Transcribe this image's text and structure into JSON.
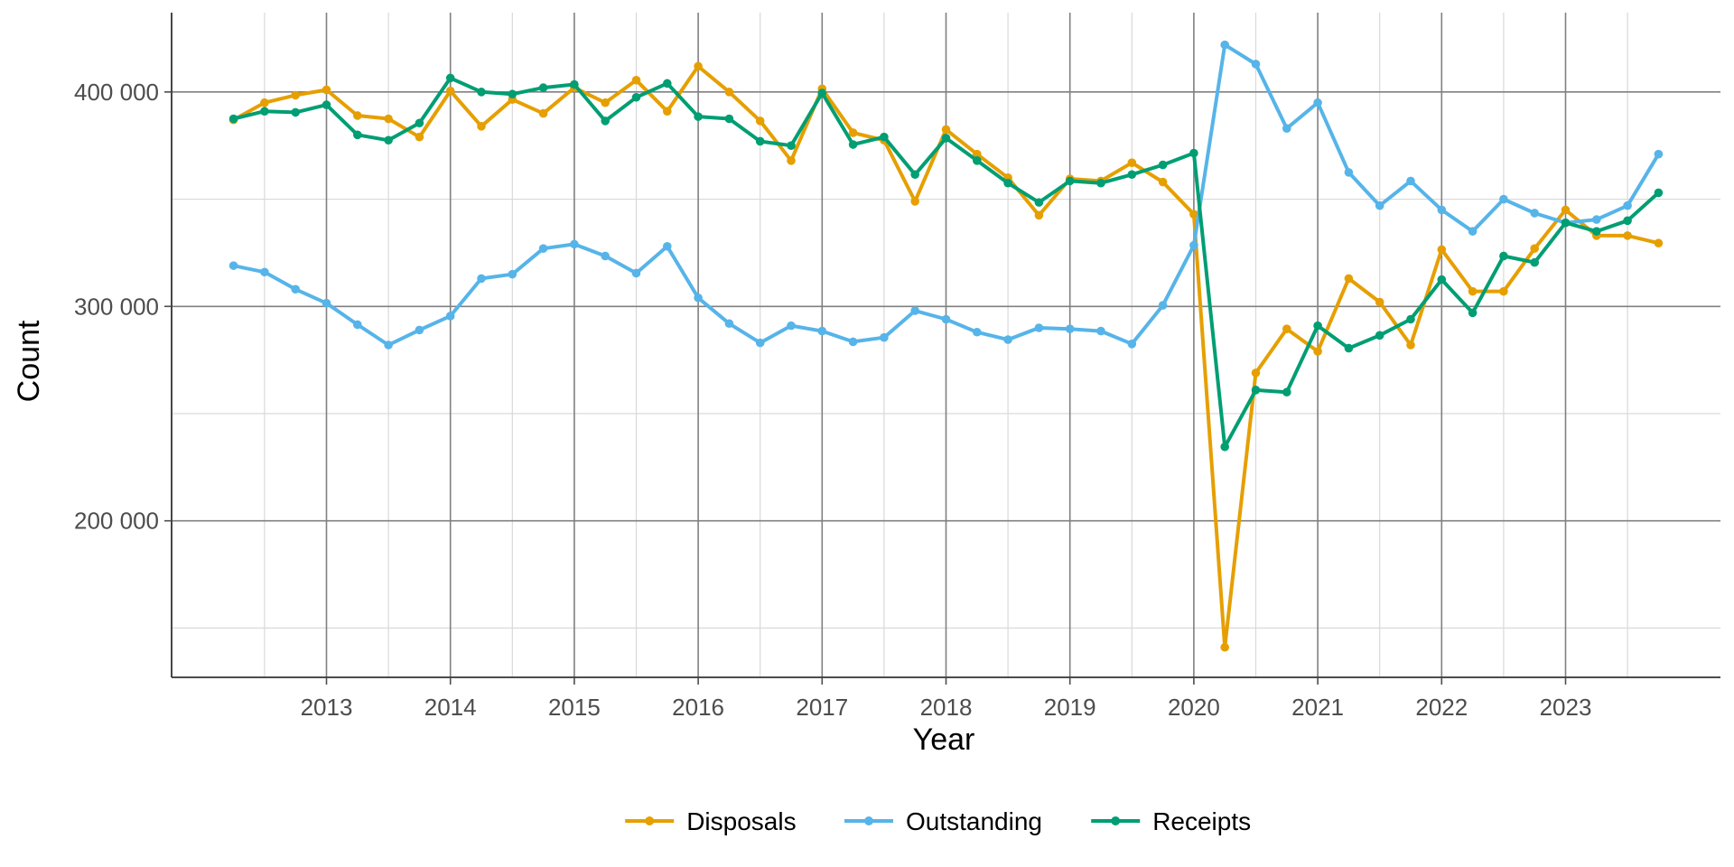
{
  "chart_data": {
    "type": "line",
    "title": "",
    "xlabel": "Year",
    "ylabel": "Count",
    "xlim": [
      2011.75,
      2024.25
    ],
    "ylim": [
      127000,
      437000
    ],
    "x_ticks": [
      2013,
      2014,
      2015,
      2016,
      2017,
      2018,
      2019,
      2020,
      2021,
      2022,
      2023
    ],
    "x_tick_labels": [
      "2013",
      "2014",
      "2015",
      "2016",
      "2017",
      "2018",
      "2019",
      "2020",
      "2021",
      "2022",
      "2023"
    ],
    "y_ticks": [
      200000,
      300000,
      400000
    ],
    "y_tick_labels": [
      "200 000",
      "300 000",
      "400 000"
    ],
    "grid": true,
    "legend_position": "bottom",
    "x": [
      2012.25,
      2012.5,
      2012.75,
      2013.0,
      2013.25,
      2013.5,
      2013.75,
      2014.0,
      2014.25,
      2014.5,
      2014.75,
      2015.0,
      2015.25,
      2015.5,
      2015.75,
      2016.0,
      2016.25,
      2016.5,
      2016.75,
      2017.0,
      2017.25,
      2017.5,
      2017.75,
      2018.0,
      2018.25,
      2018.5,
      2018.75,
      2019.0,
      2019.25,
      2019.5,
      2019.75,
      2020.0,
      2020.25,
      2020.5,
      2020.75,
      2021.0,
      2021.25,
      2021.5,
      2021.75,
      2022.0,
      2022.25,
      2022.5,
      2022.75,
      2023.0,
      2023.25,
      2023.5,
      2023.75
    ],
    "series": [
      {
        "name": "Disposals",
        "color": "#E69F00",
        "values": [
          387000,
          395000,
          398500,
          401000,
          389000,
          387500,
          379000,
          400500,
          384000,
          396500,
          390000,
          402000,
          395000,
          405500,
          391000,
          412000,
          400000,
          386500,
          368000,
          401500,
          381000,
          377500,
          349000,
          382500,
          371000,
          360000,
          342500,
          359500,
          358500,
          367000,
          358000,
          343000,
          141000,
          269000,
          289500,
          279000,
          313000,
          302000,
          282000,
          326500,
          307000,
          307000,
          327000,
          345000,
          333000,
          333000,
          329500
        ]
      },
      {
        "name": "Outstanding",
        "color": "#56B4E9",
        "values": [
          319000,
          316000,
          308000,
          301500,
          291500,
          282000,
          289000,
          295500,
          313000,
          315000,
          327000,
          329000,
          323500,
          315500,
          328000,
          304000,
          292000,
          283000,
          291000,
          288500,
          283500,
          285500,
          298000,
          294000,
          288000,
          284500,
          290000,
          289500,
          288500,
          282500,
          300500,
          328500,
          422000,
          413000,
          383000,
          395000,
          362500,
          347000,
          358500,
          345000,
          335000,
          350000,
          343500,
          339000,
          340500,
          347000,
          371000
        ]
      },
      {
        "name": "Receipts",
        "color": "#009E73",
        "values": [
          387500,
          391000,
          390500,
          394000,
          380000,
          377500,
          385500,
          406500,
          400000,
          399000,
          402000,
          403500,
          386500,
          397500,
          404000,
          388500,
          387500,
          377000,
          375000,
          399500,
          375500,
          379000,
          361500,
          378500,
          368000,
          357500,
          348500,
          358500,
          357500,
          361500,
          366000,
          371500,
          234500,
          261000,
          260000,
          291000,
          280500,
          286500,
          294000,
          312500,
          297000,
          323500,
          320500,
          339000,
          335000,
          340000,
          353000
        ]
      }
    ]
  }
}
